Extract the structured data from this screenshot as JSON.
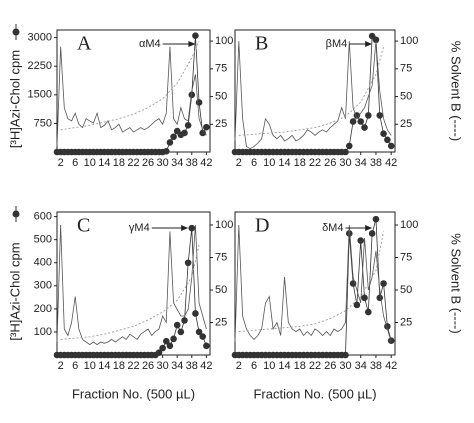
{
  "chart_data": [
    {
      "type": "line",
      "label": "A",
      "annotation": "αM4",
      "ylabel": "[³H]Azi-Chol cpm",
      "x": [
        1,
        2,
        3,
        4,
        5,
        6,
        7,
        8,
        9,
        10,
        11,
        12,
        13,
        14,
        15,
        16,
        17,
        18,
        19,
        20,
        21,
        22,
        23,
        24,
        25,
        26,
        27,
        28,
        29,
        30,
        31,
        32,
        33,
        34,
        35,
        36,
        37,
        38,
        39,
        40,
        41,
        42
      ],
      "xlim": [
        1,
        43
      ],
      "xticks": [
        2,
        6,
        10,
        14,
        18,
        22,
        26,
        30,
        34,
        38,
        42
      ],
      "ylim": [
        0,
        3200
      ],
      "yticks": [
        750,
        1500,
        2250,
        3000
      ],
      "y2lim": [
        0,
        110
      ],
      "y2ticks": [
        25,
        50,
        75,
        100
      ],
      "series": [
        {
          "color": "#333333",
          "values": [
            0,
            0,
            0,
            0,
            0,
            0,
            0,
            0,
            0,
            0,
            0,
            0,
            0,
            0,
            0,
            0,
            0,
            0,
            0,
            0,
            0,
            0,
            0,
            0,
            0,
            0,
            0,
            0,
            0,
            0,
            20,
            250,
            400,
            550,
            450,
            500,
            700,
            1500,
            3050,
            1300,
            500,
            650
          ]
        },
        {
          "color": "#555555",
          "axis": "y2",
          "values": [
            5,
            95,
            40,
            30,
            28,
            35,
            25,
            22,
            30,
            28,
            26,
            35,
            22,
            24,
            28,
            20,
            22,
            25,
            18,
            20,
            22,
            18,
            20,
            22,
            20,
            22,
            25,
            28,
            30,
            25,
            35,
            95,
            30,
            25,
            40,
            30,
            28,
            55,
            70,
            30,
            20,
            15
          ]
        },
        {
          "color": "#999999",
          "axis": "y2",
          "x": [
            2,
            6,
            10,
            14,
            18,
            22,
            26,
            30,
            34,
            38,
            40
          ],
          "values": [
            20,
            22,
            24,
            27,
            30,
            34,
            40,
            48,
            62,
            85,
            100
          ]
        }
      ]
    },
    {
      "type": "line",
      "label": "B",
      "annotation": "βM4",
      "y2label": "% Solvent B (----)",
      "x": [
        1,
        2,
        3,
        4,
        5,
        6,
        7,
        8,
        9,
        10,
        11,
        12,
        13,
        14,
        15,
        16,
        17,
        18,
        19,
        20,
        21,
        22,
        23,
        24,
        25,
        26,
        27,
        28,
        29,
        30,
        31,
        32,
        33,
        34,
        35,
        36,
        37,
        38,
        39,
        40,
        41,
        42
      ],
      "xlim": [
        1,
        43
      ],
      "xticks": [
        2,
        6,
        10,
        14,
        18,
        22,
        26,
        30,
        34,
        38,
        42
      ],
      "ylim": [
        0,
        1000
      ],
      "y2lim": [
        0,
        110
      ],
      "y2ticks": [
        25,
        50,
        75,
        100
      ],
      "series": [
        {
          "color": "#333333",
          "values": [
            0,
            0,
            0,
            0,
            0,
            0,
            0,
            0,
            0,
            0,
            0,
            0,
            0,
            0,
            0,
            0,
            0,
            0,
            0,
            0,
            0,
            0,
            0,
            0,
            0,
            0,
            0,
            0,
            0,
            0,
            50,
            250,
            300,
            250,
            200,
            300,
            950,
            920,
            300,
            150,
            100,
            50
          ]
        },
        {
          "color": "#555555",
          "axis": "y2",
          "values": [
            10,
            100,
            30,
            5,
            3,
            5,
            8,
            12,
            30,
            25,
            15,
            12,
            15,
            10,
            12,
            15,
            10,
            12,
            15,
            20,
            18,
            15,
            18,
            20,
            18,
            22,
            25,
            28,
            40,
            30,
            100,
            40,
            30,
            35,
            40,
            50,
            60,
            100,
            55,
            30,
            20,
            15
          ]
        },
        {
          "color": "#999999",
          "axis": "y2",
          "x": [
            2,
            6,
            10,
            14,
            18,
            22,
            26,
            30,
            34,
            38,
            40
          ],
          "values": [
            15,
            16,
            17,
            18,
            20,
            22,
            26,
            32,
            45,
            70,
            95
          ]
        }
      ]
    },
    {
      "type": "line",
      "label": "C",
      "annotation": "γM4",
      "ylabel": "[³H]Azi-Chol cpm",
      "xlabel": "Fraction No. (500 µL)",
      "x": [
        1,
        2,
        3,
        4,
        5,
        6,
        7,
        8,
        9,
        10,
        11,
        12,
        13,
        14,
        15,
        16,
        17,
        18,
        19,
        20,
        21,
        22,
        23,
        24,
        25,
        26,
        27,
        28,
        29,
        30,
        31,
        32,
        33,
        34,
        35,
        36,
        37,
        38,
        39,
        40,
        41,
        42
      ],
      "xlim": [
        1,
        43
      ],
      "xticks": [
        2,
        6,
        10,
        14,
        18,
        22,
        26,
        30,
        34,
        38,
        42
      ],
      "ylim": [
        0,
        620
      ],
      "yticks": [
        100,
        200,
        300,
        400,
        500,
        600
      ],
      "y2lim": [
        0,
        110
      ],
      "y2ticks": [
        25,
        50,
        75,
        100
      ],
      "series": [
        {
          "color": "#333333",
          "values": [
            0,
            0,
            0,
            0,
            0,
            0,
            0,
            0,
            0,
            0,
            0,
            0,
            0,
            0,
            0,
            0,
            0,
            0,
            0,
            0,
            0,
            0,
            0,
            0,
            0,
            0,
            0,
            0,
            10,
            30,
            60,
            40,
            70,
            130,
            100,
            150,
            400,
            550,
            180,
            100,
            80,
            40
          ]
        },
        {
          "color": "#555555",
          "axis": "y2",
          "values": [
            10,
            100,
            20,
            15,
            25,
            45,
            20,
            12,
            10,
            8,
            10,
            8,
            10,
            9,
            10,
            12,
            10,
            12,
            14,
            12,
            16,
            14,
            12,
            16,
            18,
            20,
            15,
            18,
            20,
            30,
            25,
            95,
            40,
            35,
            30,
            30,
            35,
            60,
            100,
            40,
            30,
            20
          ]
        },
        {
          "color": "#999999",
          "axis": "y2",
          "x": [
            2,
            6,
            10,
            14,
            18,
            22,
            26,
            30,
            34,
            38,
            40
          ],
          "values": [
            12,
            13,
            14,
            16,
            19,
            22,
            27,
            33,
            42,
            60,
            85
          ]
        }
      ]
    },
    {
      "type": "line",
      "label": "D",
      "annotation": "δM4",
      "y2label": "% Solvent B (----)",
      "xlabel": "Fraction No. (500 µL)",
      "x": [
        1,
        2,
        3,
        4,
        5,
        6,
        7,
        8,
        9,
        10,
        11,
        12,
        13,
        14,
        15,
        16,
        17,
        18,
        19,
        20,
        21,
        22,
        23,
        24,
        25,
        26,
        27,
        28,
        29,
        30,
        31,
        32,
        33,
        34,
        35,
        36,
        37,
        38,
        39,
        40,
        41,
        42
      ],
      "xlim": [
        1,
        43
      ],
      "xticks": [
        2,
        6,
        10,
        14,
        18,
        22,
        26,
        30,
        34,
        38,
        42
      ],
      "ylim": [
        0,
        1000
      ],
      "y2lim": [
        0,
        110
      ],
      "y2ticks": [
        25,
        50,
        75,
        100
      ],
      "series": [
        {
          "color": "#333333",
          "values": [
            0,
            0,
            0,
            0,
            0,
            0,
            0,
            0,
            0,
            0,
            0,
            0,
            0,
            0,
            0,
            0,
            0,
            0,
            0,
            0,
            0,
            0,
            0,
            0,
            0,
            0,
            0,
            0,
            0,
            0,
            850,
            500,
            350,
            800,
            400,
            300,
            850,
            950,
            400,
            500,
            200,
            100
          ]
        },
        {
          "color": "#555555",
          "axis": "y2",
          "values": [
            10,
            100,
            30,
            20,
            15,
            12,
            15,
            20,
            40,
            45,
            20,
            25,
            15,
            60,
            25,
            20,
            18,
            20,
            15,
            18,
            15,
            20,
            18,
            15,
            18,
            15,
            20,
            18,
            20,
            25,
            100,
            60,
            50,
            40,
            90,
            50,
            60,
            80,
            50,
            30,
            20,
            10
          ]
        },
        {
          "color": "#999999",
          "axis": "y2",
          "x": [
            2,
            6,
            10,
            14,
            18,
            22,
            26,
            30,
            34,
            38,
            40
          ],
          "values": [
            18,
            19,
            20,
            21,
            22,
            24,
            28,
            34,
            45,
            65,
            95
          ]
        }
      ]
    }
  ]
}
